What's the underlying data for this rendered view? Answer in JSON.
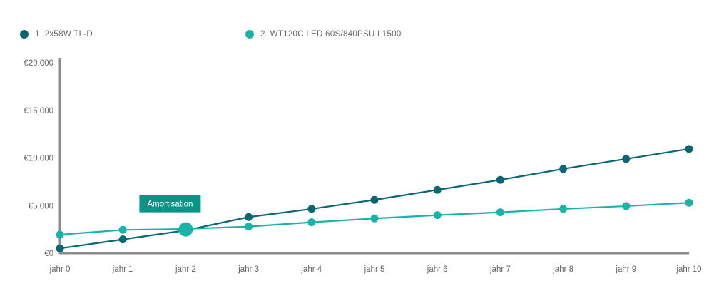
{
  "chart_data": {
    "type": "line",
    "categories": [
      "jahr 0",
      "jahr 1",
      "jahr 2",
      "jahr 3",
      "jahr 4",
      "jahr 5",
      "jahr 6",
      "jahr 7",
      "jahr 8",
      "jahr 9",
      "jahr 10"
    ],
    "series": [
      {
        "name": "1. 2x58W TL-D",
        "color": "#0a6670",
        "values": [
          500,
          1450,
          2400,
          3800,
          4650,
          5600,
          6650,
          7700,
          8850,
          9900,
          10950
        ]
      },
      {
        "name": "2. WT120C LED 60S/840PSU L1500",
        "color": "#1ab3a8",
        "values": [
          1950,
          2450,
          2550,
          2800,
          3250,
          3650,
          4000,
          4300,
          4650,
          4950,
          5300
        ]
      }
    ],
    "y_ticks": [
      0,
      5000,
      10000,
      15000,
      20000
    ],
    "y_tick_labels": [
      "€0",
      "€5,000",
      "€10,000",
      "€15,000",
      "€20,000"
    ],
    "ylim": [
      0,
      20000
    ],
    "grid": false,
    "legend_position": "top-left",
    "annotation": {
      "label": "Amortisation",
      "category_index": 2,
      "value": 2500,
      "color": "#0b9486"
    },
    "axis_color": "#8c8c8c"
  }
}
